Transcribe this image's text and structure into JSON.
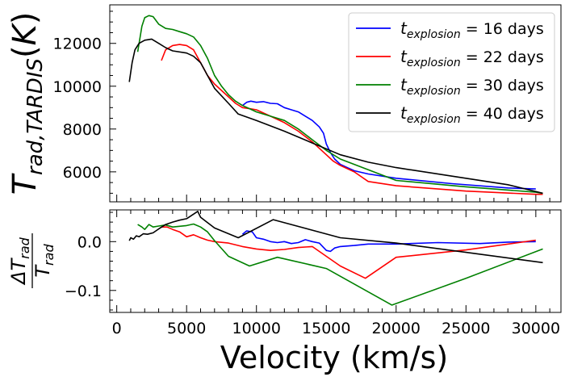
{
  "chart_data": [
    {
      "type": "line",
      "panel": "top",
      "ylabel": "T_rad,TARDIS(K)",
      "xlim": [
        -500,
        31800
      ],
      "ylim": [
        4600,
        13800
      ],
      "yticks": [
        6000,
        8000,
        10000,
        12000
      ],
      "ytick_labels": [
        "6000",
        "8000",
        "10000",
        "12000"
      ],
      "legend_position": "top-right",
      "series": [
        {
          "name": "t_explosion = 16 days",
          "label_main": "t",
          "label_sub": "explosion",
          "label_rest": " = 16 days",
          "color": "#0000ff",
          "x": [
            9000,
            9300,
            9600,
            10000,
            10500,
            11000,
            11500,
            12000,
            12500,
            13000,
            13500,
            14000,
            14500,
            14800,
            15000,
            15300,
            15600,
            16000,
            16500,
            17000,
            18000,
            20000,
            24000,
            28000,
            30000
          ],
          "y": [
            9100,
            9250,
            9300,
            9250,
            9280,
            9200,
            9180,
            9000,
            8900,
            8800,
            8600,
            8400,
            8100,
            7800,
            7300,
            6900,
            6600,
            6350,
            6200,
            6050,
            5900,
            5700,
            5450,
            5250,
            5200
          ]
        },
        {
          "name": "t_explosion = 22 days",
          "label_main": "t",
          "label_sub": "explosion",
          "label_rest": " = 22 days",
          "color": "#ff0000",
          "x": [
            3200,
            3500,
            4000,
            4500,
            5000,
            5500,
            6000,
            6500,
            7000,
            7500,
            8000,
            8500,
            9000,
            9500,
            10000,
            11000,
            12000,
            13000,
            14000,
            15000,
            15500,
            16000,
            17000,
            18000,
            20000,
            25000,
            30000,
            30500
          ],
          "y": [
            11200,
            11700,
            11900,
            11950,
            11900,
            11700,
            11100,
            10500,
            10100,
            9800,
            9500,
            9200,
            9000,
            8950,
            8900,
            8600,
            8300,
            7900,
            7400,
            6800,
            6500,
            6300,
            6000,
            5550,
            5350,
            5100,
            4950,
            4950
          ]
        },
        {
          "name": "t_explosion = 30 days",
          "label_main": "t",
          "label_sub": "explosion",
          "label_rest": " = 30 days",
          "color": "#008000",
          "x": [
            1500,
            1800,
            2000,
            2300,
            2600,
            3000,
            3500,
            4000,
            4500,
            5000,
            5500,
            6000,
            6500,
            7000,
            7500,
            8000,
            8500,
            9000,
            9500,
            10000,
            11000,
            12000,
            13000,
            14000,
            15000,
            16000,
            17000,
            18000,
            20000,
            25000,
            30000,
            30500
          ],
          "y": [
            11600,
            12800,
            13200,
            13300,
            13250,
            12900,
            12700,
            12650,
            12550,
            12450,
            12300,
            11900,
            11300,
            10500,
            10000,
            9600,
            9300,
            9100,
            8950,
            8800,
            8600,
            8400,
            8000,
            7500,
            7000,
            6600,
            6350,
            6100,
            5600,
            5300,
            5050,
            5000
          ]
        },
        {
          "name": "t_explosion = 40 days",
          "label_main": "t",
          "label_sub": "explosion",
          "label_rest": " = 40 days",
          "color": "#000000",
          "x": [
            900,
            1100,
            1300,
            1600,
            2000,
            2500,
            3000,
            3500,
            4000,
            5000,
            5500,
            6000,
            6500,
            7000,
            8000,
            8700,
            10000,
            12000,
            14000,
            16000,
            18000,
            20000,
            24000,
            28000,
            30500
          ],
          "y": [
            10200,
            11100,
            11700,
            12000,
            12150,
            12200,
            12000,
            11800,
            11650,
            11550,
            11400,
            11100,
            10500,
            9900,
            9200,
            8700,
            8400,
            7900,
            7350,
            6800,
            6450,
            6200,
            5800,
            5400,
            5000
          ]
        }
      ]
    },
    {
      "type": "line",
      "panel": "bottom",
      "ylabel": "ΔT_rad / T_rad",
      "ylabel_num_main": "ΔT",
      "ylabel_num_sub": "rad",
      "ylabel_den_main": "T",
      "ylabel_den_sub": "rad",
      "xlabel": "Velocity (km/s)",
      "xlim": [
        -500,
        31800
      ],
      "ylim": [
        -0.145,
        0.065
      ],
      "xticks": [
        0,
        5000,
        10000,
        15000,
        20000,
        25000,
        30000
      ],
      "xtick_labels": [
        "0",
        "5000",
        "10000",
        "15000",
        "20000",
        "25000",
        "30000"
      ],
      "yticks": [
        -0.1,
        0.0
      ],
      "ytick_labels": [
        "−0.1",
        "0.0"
      ],
      "series": [
        {
          "name": "t_explosion = 16 days",
          "color": "#0000ff",
          "x": [
            9000,
            9300,
            9700,
            10000,
            10500,
            11000,
            11500,
            12000,
            12500,
            13000,
            13500,
            14000,
            14500,
            15000,
            15300,
            15600,
            16000,
            17000,
            18000,
            20000,
            23000,
            26000,
            28000,
            30000
          ],
          "y": [
            0.015,
            0.022,
            0.02,
            0.008,
            0.005,
            0.0,
            -0.002,
            0.0,
            -0.004,
            -0.002,
            0.004,
            0.0,
            -0.003,
            -0.018,
            -0.02,
            -0.013,
            -0.01,
            -0.008,
            -0.005,
            -0.005,
            -0.002,
            -0.004,
            -0.001,
            0.0
          ]
        },
        {
          "name": "t_explosion = 22 days",
          "color": "#ff0000",
          "x": [
            3200,
            3600,
            4000,
            4500,
            5000,
            5500,
            6000,
            6500,
            7000,
            8000,
            9000,
            10000,
            11000,
            12000,
            13000,
            14000,
            15000,
            16000,
            17800,
            20000,
            25000,
            30000
          ],
          "y": [
            0.03,
            0.03,
            0.025,
            0.02,
            0.01,
            0.014,
            0.008,
            0.003,
            0.0,
            -0.003,
            -0.01,
            -0.015,
            -0.018,
            -0.016,
            -0.012,
            -0.01,
            -0.03,
            -0.05,
            -0.075,
            -0.032,
            -0.017,
            0.003
          ]
        },
        {
          "name": "t_explosion = 30 days",
          "color": "#008000",
          "x": [
            1500,
            1800,
            2000,
            2300,
            2600,
            3000,
            3500,
            4000,
            5000,
            5500,
            6000,
            6500,
            7000,
            8000,
            9500,
            11500,
            15000,
            19700,
            25000,
            30500
          ],
          "y": [
            0.035,
            0.03,
            0.025,
            0.035,
            0.03,
            0.032,
            0.034,
            0.03,
            0.033,
            0.036,
            0.03,
            0.02,
            0.002,
            -0.03,
            -0.05,
            -0.032,
            -0.055,
            -0.13,
            -0.075,
            -0.015
          ]
        },
        {
          "name": "t_explosion = 40 days",
          "color": "#000000",
          "x": [
            900,
            1000,
            1200,
            1400,
            1600,
            1900,
            2200,
            2600,
            3000,
            3500,
            4000,
            4500,
            5000,
            5800,
            6000,
            7000,
            8700,
            11200,
            16000,
            20000,
            25000,
            30500
          ],
          "y": [
            0.002,
            0.008,
            0.005,
            0.012,
            0.01,
            0.016,
            0.015,
            0.018,
            0.026,
            0.035,
            0.04,
            0.044,
            0.047,
            0.062,
            0.05,
            0.028,
            0.008,
            0.045,
            0.008,
            -0.003,
            -0.022,
            -0.043
          ]
        }
      ]
    }
  ]
}
